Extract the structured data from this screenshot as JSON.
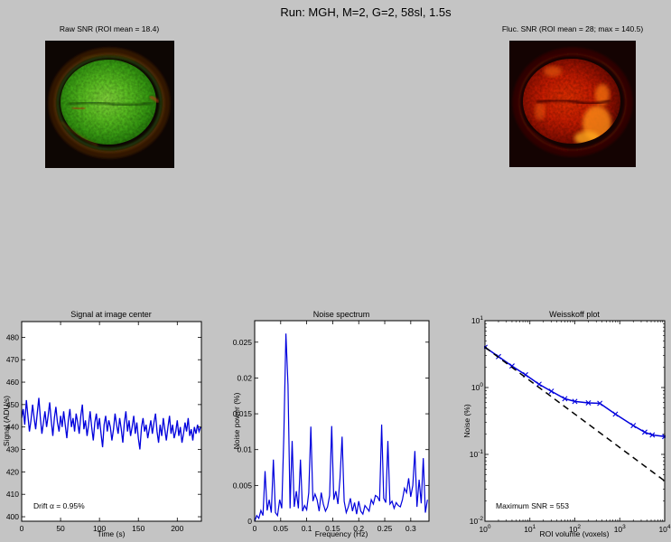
{
  "figure": {
    "title": "Run: MGH, M=2, G=2, 58sl, 1.5s"
  },
  "colors": {
    "figure_bg": "#c4c4c4",
    "axes_bg": "#ffffff",
    "signal_line": "#0000dd",
    "theory_line": "#000000",
    "axis": "#000000"
  },
  "images": {
    "raw": {
      "title": "Raw SNR (ROI mean = 18.4)",
      "colormap": "green tissue with red-orange skull rim on black"
    },
    "fluc": {
      "title": "Fluc. SNR (ROI mean = 28; max = 140.5)",
      "colormap": "red-hot tissue with bright orange hotspots on black"
    }
  },
  "chart_data": [
    {
      "type": "line",
      "title": "Signal at image center",
      "xlabel": "Time (s)",
      "ylabel": "Signal (ADU/s)",
      "annotation": "Drift α = 0.95%",
      "grid": false,
      "xlim": [
        0,
        231
      ],
      "ylim": [
        398,
        487
      ],
      "xticks": [
        0,
        50,
        100,
        150,
        200
      ],
      "yticks": [
        400,
        410,
        420,
        430,
        440,
        450,
        460,
        470,
        480
      ],
      "color": "#0000dd",
      "line_width": 1.3,
      "x0": 0,
      "dx": 2,
      "y": [
        444,
        448,
        441,
        452,
        445,
        438,
        443,
        450,
        444,
        439,
        446,
        453,
        444,
        437,
        442,
        447,
        440,
        445,
        451,
        443,
        436,
        444,
        449,
        442,
        438,
        445,
        440,
        447,
        441,
        435,
        443,
        448,
        440,
        444,
        438,
        446,
        442,
        437,
        445,
        450,
        439,
        443,
        436,
        441,
        447,
        440,
        434,
        442,
        446,
        439,
        444,
        437,
        431,
        441,
        445,
        438,
        443,
        440,
        434,
        439,
        446,
        441,
        437,
        444,
        439,
        433,
        442,
        447,
        438,
        443,
        436,
        440,
        445,
        437,
        442,
        435,
        430,
        440,
        444,
        438,
        441,
        435,
        439,
        443,
        437,
        442,
        446,
        438,
        433,
        441,
        436,
        444,
        439,
        434,
        440,
        445,
        437,
        441,
        435,
        438,
        443,
        436,
        440,
        433,
        437,
        442,
        438,
        444,
        436,
        439,
        434,
        440,
        437,
        441,
        438,
        440
      ]
    },
    {
      "type": "line",
      "title": "Noise spectrum",
      "xlabel": "Frequency (Hz)",
      "ylabel": "Noise power (%)",
      "grid": false,
      "xlim": [
        0,
        0.335
      ],
      "ylim": [
        0,
        0.028
      ],
      "xticks": [
        0,
        0.05,
        0.1,
        0.15,
        0.2,
        0.25,
        0.3
      ],
      "yticks": [
        0,
        0.005,
        0.01,
        0.015,
        0.02,
        0.025
      ],
      "color": "#0000dd",
      "line_width": 1.2,
      "x0": 0,
      "dx": 0.004,
      "y": [
        0,
        0.0008,
        0.0004,
        0.0015,
        0.0008,
        0.007,
        0.0015,
        0.003,
        0.0012,
        0.0086,
        0.0012,
        0.0008,
        0.003,
        0.0018,
        0.012,
        0.0262,
        0.019,
        0.0018,
        0.0112,
        0.002,
        0.0042,
        0.0018,
        0.0086,
        0.0014,
        0.0022,
        0.0016,
        0.004,
        0.0132,
        0.0028,
        0.0038,
        0.003,
        0.0014,
        0.004,
        0.0024,
        0.0014,
        0.002,
        0.0036,
        0.0133,
        0.003,
        0.0042,
        0.0024,
        0.006,
        0.0118,
        0.0028,
        0.0012,
        0.002,
        0.0032,
        0.0014,
        0.0026,
        0.001,
        0.0028,
        0.0014,
        0.001,
        0.0022,
        0.0018,
        0.0014,
        0.003,
        0.0024,
        0.0036,
        0.0034,
        0.0028,
        0.0135,
        0.0032,
        0.0026,
        0.0112,
        0.0024,
        0.0028,
        0.0018,
        0.0026,
        0.0022,
        0.002,
        0.003,
        0.0046,
        0.004,
        0.006,
        0.0034,
        0.005,
        0.0098,
        0.002,
        0.0058,
        0.0025,
        0.0088,
        0.0012,
        0.003
      ]
    },
    {
      "type": "line",
      "title": "Weisskoff plot",
      "xlabel": "ROI volume (voxels)",
      "ylabel": "Noise (%)",
      "annotation": "Maximum SNR = 553",
      "grid": false,
      "xscale": "log",
      "yscale": "log",
      "xlim": [
        1,
        10000
      ],
      "ylim": [
        0.01,
        10
      ],
      "xtick_exponents": [
        0,
        1,
        2,
        3,
        4
      ],
      "ytick_exponents": [
        1,
        0,
        -1,
        -2
      ],
      "series": [
        {
          "name": "measured noise",
          "color": "#0000dd",
          "marker": "x",
          "width": 1.5,
          "x": [
            1,
            2,
            4,
            8,
            16,
            30,
            60,
            100,
            200,
            360,
            800,
            2000,
            3600,
            5300,
            10000
          ],
          "y": [
            4.0,
            2.9,
            2.1,
            1.55,
            1.12,
            0.88,
            0.68,
            0.62,
            0.59,
            0.58,
            0.4,
            0.27,
            0.215,
            0.195,
            0.185
          ]
        },
        {
          "name": "theoretical 1/sqrt(N)",
          "color": "#000000",
          "style": "dashed",
          "width": 1.5,
          "x": [
            1,
            10000
          ],
          "y": [
            4,
            0.04
          ]
        }
      ]
    }
  ]
}
